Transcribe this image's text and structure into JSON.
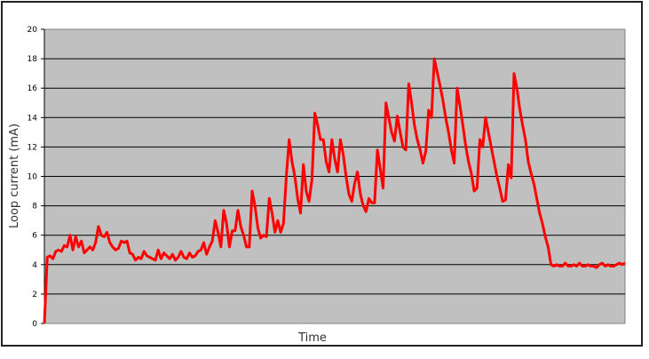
{
  "chart_data": {
    "type": "line",
    "title": "",
    "xlabel": "Time",
    "ylabel": "Loop current (mA)",
    "ylim": [
      0,
      20
    ],
    "yticks": [
      "0",
      "2",
      "4",
      "6",
      "8",
      "10",
      "12",
      "14",
      "16",
      "18",
      "20"
    ],
    "grid": true,
    "legend": "none",
    "colors": {
      "line": "#ff0000",
      "plot_background": "#c0c0c0",
      "gridline": "#000000"
    },
    "series": [
      {
        "values": [
          0,
          4.5,
          4.6,
          4.4,
          4.9,
          5.0,
          4.9,
          5.3,
          5.2,
          6.0,
          5.0,
          5.9,
          5.2,
          5.6,
          4.8,
          5.0,
          5.2,
          5.0,
          5.5,
          6.6,
          6.0,
          5.9,
          6.2,
          5.5,
          5.2,
          5.0,
          5.1,
          5.6,
          5.5,
          5.6,
          4.8,
          4.7,
          4.3,
          4.5,
          4.4,
          4.9,
          4.6,
          4.5,
          4.4,
          4.3,
          5.0,
          4.4,
          4.8,
          4.6,
          4.4,
          4.7,
          4.3,
          4.5,
          4.9,
          4.5,
          4.4,
          4.8,
          4.5,
          4.6,
          4.9,
          5.0,
          5.5,
          4.7,
          5.2,
          5.6,
          7.0,
          6.2,
          5.2,
          7.7,
          6.8,
          5.2,
          6.3,
          6.3,
          7.7,
          6.6,
          6.0,
          5.2,
          5.2,
          9.0,
          8.0,
          6.5,
          5.8,
          6.0,
          5.9,
          8.5,
          7.5,
          6.2,
          7.0,
          6.2,
          6.8,
          10.0,
          12.5,
          11.0,
          10.0,
          8.5,
          7.5,
          10.8,
          9.0,
          8.3,
          9.8,
          14.3,
          13.5,
          12.5,
          12.5,
          11.0,
          10.3,
          12.5,
          11.2,
          10.3,
          12.5,
          11.5,
          10.0,
          8.8,
          8.3,
          9.5,
          10.3,
          8.8,
          8.0,
          7.6,
          8.5,
          8.2,
          8.2,
          11.8,
          10.5,
          9.2,
          15.0,
          14.0,
          13.0,
          12.4,
          14.1,
          13.0,
          12.0,
          11.8,
          16.3,
          15.0,
          13.5,
          12.5,
          11.8,
          10.9,
          11.7,
          14.5,
          14.0,
          18.0,
          17.1,
          16.2,
          15.2,
          14.0,
          13.0,
          11.8,
          10.9,
          16.0,
          14.8,
          13.5,
          12.1,
          11.0,
          10.2,
          9.0,
          9.2,
          12.5,
          12.0,
          14.0,
          13.0,
          12.0,
          11.0,
          10.0,
          9.2,
          8.3,
          8.4,
          10.8,
          9.9,
          17.0,
          16.0,
          14.6,
          13.5,
          12.5,
          11.0,
          10.2,
          9.5,
          8.5,
          7.5,
          6.8,
          5.9,
          5.2,
          4.0,
          3.9,
          4.0,
          3.9,
          3.9,
          4.1,
          3.9,
          3.9,
          4.0,
          3.9,
          4.1,
          3.9,
          3.9,
          4.0,
          3.9,
          3.9,
          3.8,
          4.0,
          4.1,
          3.9,
          4.0,
          3.9,
          3.9,
          4.0,
          4.1,
          4.0,
          4.1
        ]
      }
    ]
  }
}
